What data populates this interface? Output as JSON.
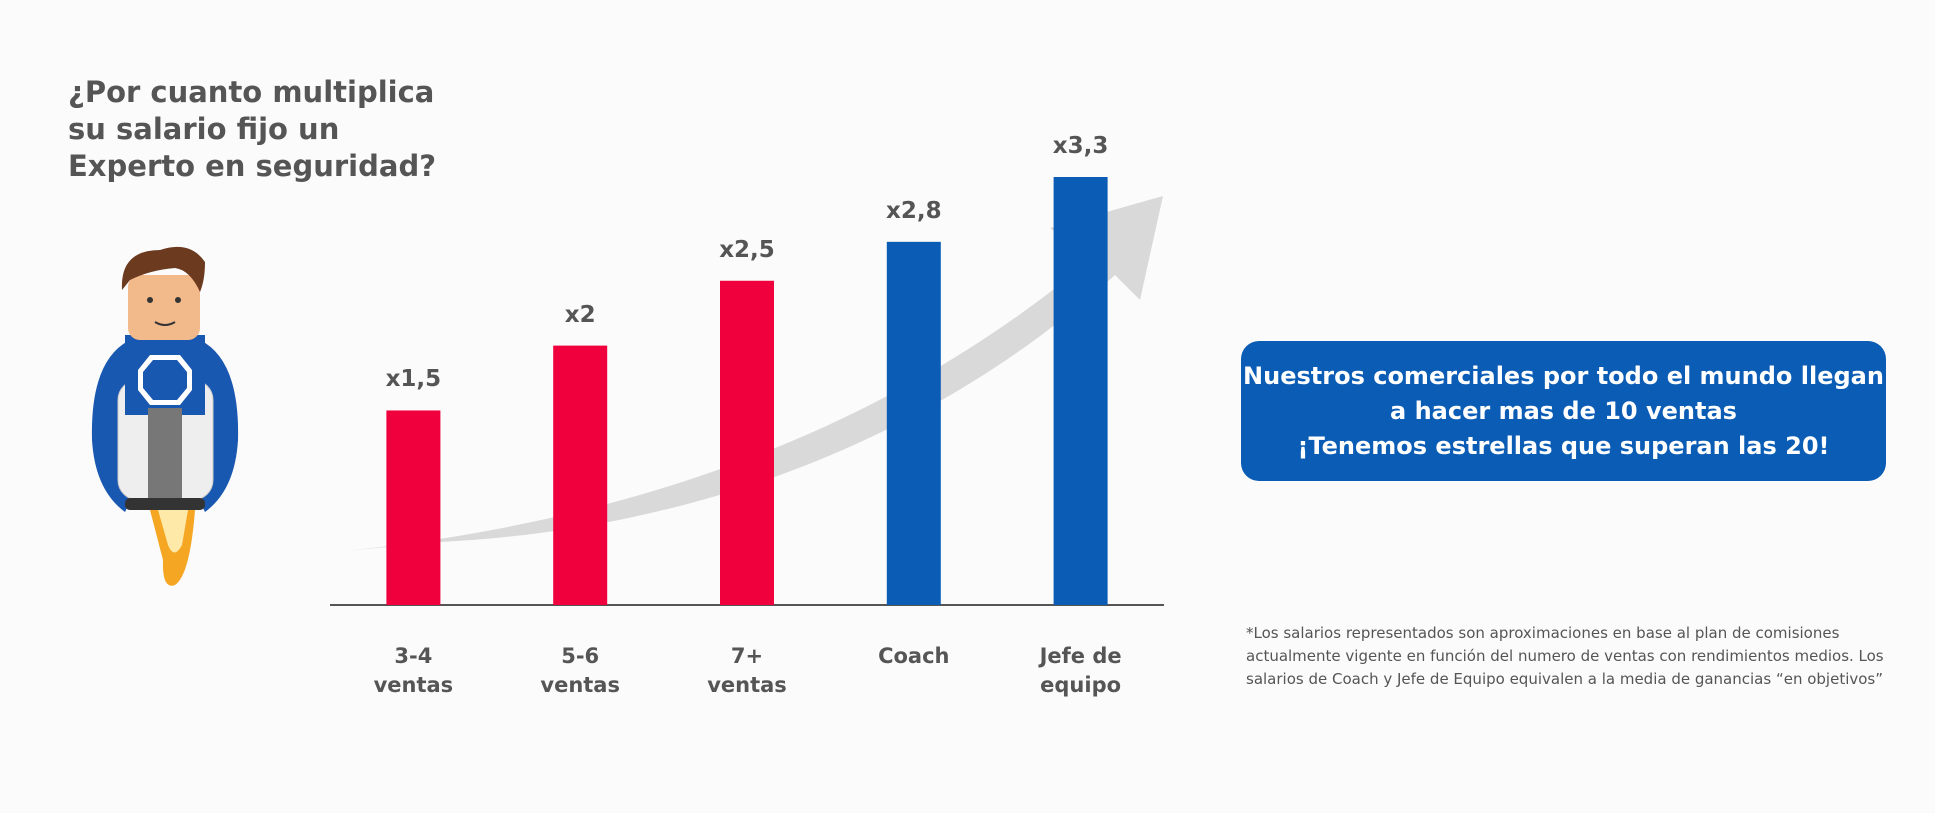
{
  "chart_data": {
    "type": "bar",
    "title": "¿Por cuanto multiplica su salario fijo un Experto en seguridad?",
    "categories": [
      "3-4 ventas",
      "5-6 ventas",
      "7+ ventas",
      "Coach",
      "Jefe de equipo"
    ],
    "values": [
      1.5,
      2,
      2.5,
      2.8,
      3.3
    ],
    "value_labels": [
      "x1,5",
      "x2",
      "x2,5",
      "x2,8",
      "x3,3"
    ],
    "colors": [
      "#f0003c",
      "#f0003c",
      "#f0003c",
      "#0b5cb5",
      "#0b5cb5"
    ]
  },
  "callout": {
    "lines": [
      "Nuestros comerciales por todo el mundo llegan",
      "a hacer mas de 10 ventas",
      "¡Tenemos estrellas que superan las 20!"
    ]
  },
  "footnote": {
    "lines": [
      "*Los salarios representados son aproximaciones en base al plan de comisiones",
      "actualmente vigente en función del numero de ventas con rendimientos medios. Los",
      "salarios de Coach y Jefe de Equipo equivalen a la media de ganancias “en objetivos”"
    ]
  }
}
